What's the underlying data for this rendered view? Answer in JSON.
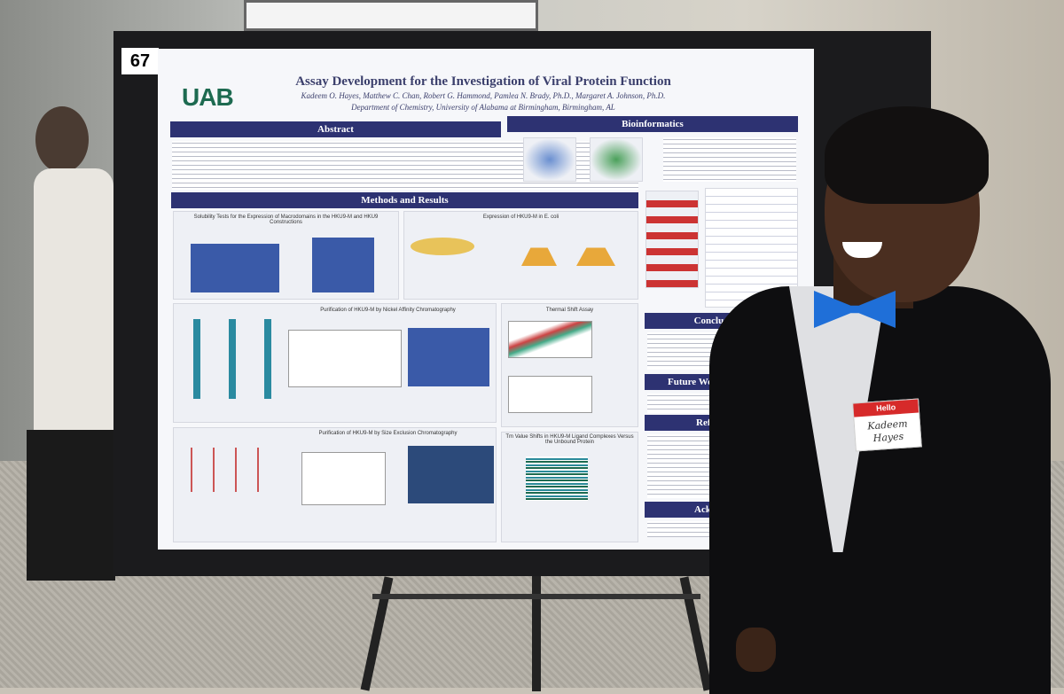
{
  "poster_number": "67",
  "header": {
    "logo": "UAB",
    "title": "Assay Development for the Investigation of Viral Protein Function",
    "authors": "Kadeem O. Hayes, Matthew C. Chan, Robert G. Hammond, Pamlea N. Brady, Ph.D., Margaret A. Johnson, Ph.D.",
    "affiliation": "Department of Chemistry, University of Alabama at Birmingham, Birmingham, AL"
  },
  "sections": {
    "abstract": "Abstract",
    "bioinformatics": "Bioinformatics",
    "methods": "Methods and Results",
    "conclusions": "Conclusions",
    "future_work": "Future Wor",
    "references": "Refere",
    "acknowledgements": "Ackno"
  },
  "figures": {
    "solubility": "Solubility Tests for the Expression of Macrodomains in the HKU9-M and HKU9 Constructions",
    "expression": "Expression of HKU9-M in E. coli",
    "nickel": "Purification of HKU9-M by Nickel Affinity Chromatography",
    "thermal": "Thermal Shift Assay",
    "sec": "Purification of HKU9-M by Size Exclusion Chromatography",
    "tm": "Tm Value Shifts in HKU9-M Ligand Complexes Versus the Unbound Protein"
  },
  "name_tag": {
    "greeting": "Hello",
    "name": "Kadeem Hayes"
  }
}
